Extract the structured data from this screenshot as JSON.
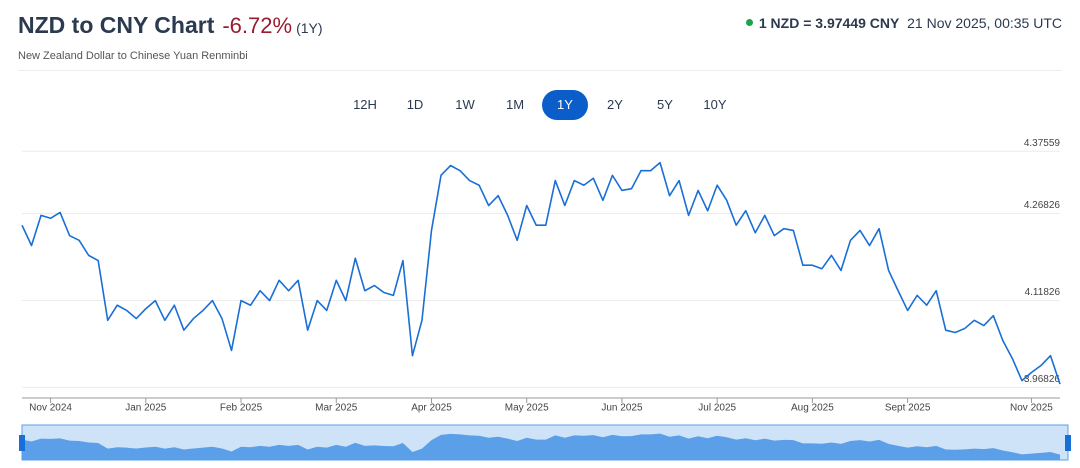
{
  "header": {
    "title": "NZD to CNY Chart",
    "change": "-6.72%",
    "period": "(1Y)",
    "subtitle": "New Zealand Dollar to Chinese Yuan Renminbi",
    "rate": "1 NZD = 3.97449 CNY",
    "timestamp": "21 Nov 2025, 00:35 UTC"
  },
  "range_buttons": {
    "options": [
      "12H",
      "1D",
      "1W",
      "1M",
      "1Y",
      "2Y",
      "5Y",
      "10Y"
    ],
    "active": 4
  },
  "chart_data": {
    "type": "line",
    "categories": [
      null,
      null,
      null,
      "Nov 2024",
      null,
      null,
      null,
      null,
      null,
      null,
      null,
      null,
      null,
      "Jan 2025",
      null,
      null,
      null,
      null,
      null,
      null,
      null,
      null,
      null,
      "Feb 2025",
      null,
      null,
      null,
      null,
      null,
      null,
      null,
      null,
      null,
      "Mar 2025",
      null,
      null,
      null,
      null,
      null,
      null,
      null,
      null,
      null,
      "Apr 2025",
      null,
      null,
      null,
      null,
      null,
      null,
      null,
      null,
      null,
      "May 2025",
      null,
      null,
      null,
      null,
      null,
      null,
      null,
      null,
      null,
      "Jun 2025",
      null,
      null,
      null,
      null,
      null,
      null,
      null,
      null,
      null,
      "Jul 2025",
      null,
      null,
      null,
      null,
      null,
      null,
      null,
      null,
      null,
      "Aug 2025",
      null,
      null,
      null,
      null,
      null,
      null,
      null,
      null,
      null,
      "Sept 2025",
      null,
      null,
      null,
      null,
      null,
      null,
      null,
      null,
      null,
      null,
      null,
      null,
      "Nov 2025",
      null,
      null,
      null
    ],
    "series": [
      {
        "name": "NZD/CNY",
        "color": "#1a6fd6",
        "values": [
          4.248,
          4.213,
          4.265,
          4.26,
          4.27,
          4.23,
          4.222,
          4.196,
          4.187,
          4.084,
          4.11,
          4.101,
          4.087,
          4.104,
          4.118,
          4.084,
          4.11,
          4.067,
          4.087,
          4.101,
          4.118,
          4.087,
          4.032,
          4.118,
          4.11,
          4.135,
          4.118,
          4.153,
          4.135,
          4.153,
          4.067,
          4.118,
          4.101,
          4.153,
          4.118,
          4.191,
          4.135,
          4.144,
          4.132,
          4.127,
          4.187,
          4.023,
          4.084,
          4.239,
          4.334,
          4.351,
          4.342,
          4.325,
          4.317,
          4.282,
          4.299,
          4.265,
          4.222,
          4.282,
          4.248,
          4.248,
          4.325,
          4.282,
          4.325,
          4.317,
          4.329,
          4.291,
          4.334,
          4.308,
          4.311,
          4.342,
          4.342,
          4.356,
          4.299,
          4.325,
          4.265,
          4.308,
          4.273,
          4.317,
          4.291,
          4.248,
          4.273,
          4.235,
          4.265,
          4.23,
          4.242,
          4.239,
          4.179,
          4.179,
          4.173,
          4.196,
          4.17,
          4.222,
          4.239,
          4.213,
          4.242,
          4.17,
          4.135,
          4.101,
          4.127,
          4.11,
          4.135,
          4.067,
          4.063,
          4.07,
          4.084,
          4.075,
          4.092,
          4.049,
          4.018,
          3.98,
          3.994,
          4.006,
          4.023,
          3.974
        ]
      }
    ],
    "ylim": [
      3.95,
      4.395
    ],
    "yticks": [
      3.96826,
      4.11826,
      4.26826,
      4.37559
    ],
    "grid": true
  }
}
